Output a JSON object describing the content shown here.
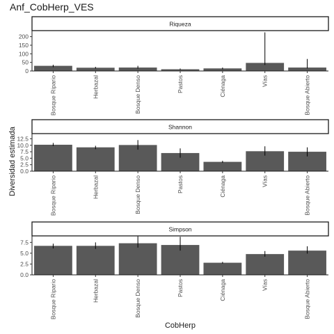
{
  "chart_data": {
    "title": "Anf_CobHerp_VES",
    "xlabel": "CobHerp",
    "ylabel": "Diversidad estimada",
    "type": "bar",
    "categories": [
      "Bosque Ripario",
      "Herbazal",
      "Bosque Denso",
      "Pastos",
      "Ciénaga",
      "Vías",
      "Bosque Abierto"
    ],
    "bar_color": "#595959",
    "facets": [
      {
        "strip": "Riqueza",
        "ylim": [
          0,
          235
        ],
        "yticks": [
          0,
          50,
          100,
          150,
          200
        ],
        "ytick_labels": [
          "0",
          "50",
          "100",
          "150",
          "200"
        ],
        "values": [
          30,
          19,
          20,
          10,
          15,
          47,
          20
        ],
        "err_low": [
          22,
          14,
          14,
          7,
          10,
          35,
          15
        ],
        "err_high": [
          36,
          24,
          30,
          14,
          20,
          225,
          70
        ]
      },
      {
        "strip": "Shannon",
        "ylim": [
          0,
          14.5
        ],
        "yticks": [
          0,
          2.5,
          5,
          7.5,
          10,
          12.5
        ],
        "ytick_labels": [
          "0.0",
          "2.5",
          "5.0",
          "7.5",
          "10.0",
          "12.5"
        ],
        "values": [
          10.2,
          9.2,
          10.1,
          7.0,
          3.6,
          7.7,
          7.5
        ],
        "err_low": [
          9.7,
          8.5,
          8.3,
          5.2,
          3.2,
          6.0,
          5.7
        ],
        "err_high": [
          10.9,
          9.8,
          12.0,
          8.8,
          4.0,
          9.6,
          9.2
        ]
      },
      {
        "strip": "Simpson",
        "ylim": [
          0,
          9.0
        ],
        "yticks": [
          0,
          2.5,
          5,
          7.5
        ],
        "ytick_labels": [
          "0.0",
          "2.5",
          "5.0",
          "7.5"
        ],
        "values": [
          6.7,
          6.7,
          7.3,
          6.9,
          2.8,
          4.8,
          5.6
        ],
        "err_low": [
          6.1,
          6.0,
          6.3,
          5.6,
          2.6,
          4.2,
          4.9
        ],
        "err_high": [
          7.2,
          7.5,
          8.9,
          8.8,
          3.0,
          5.5,
          6.6
        ]
      }
    ]
  }
}
